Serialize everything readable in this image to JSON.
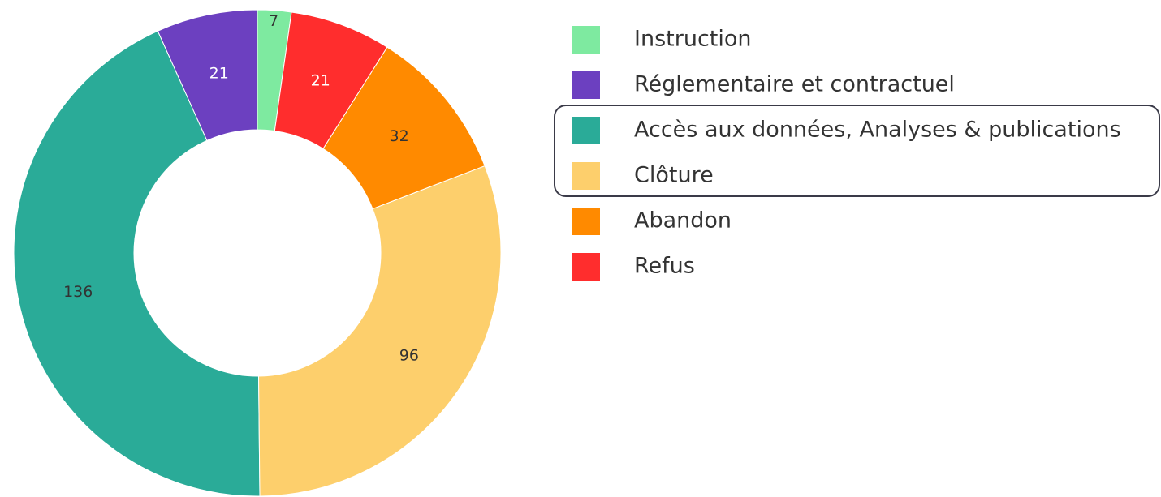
{
  "chart_data": {
    "type": "donut",
    "categories": [
      "Instruction",
      "Réglementaire et contractuel",
      "Accès aux données, Analyses & publications",
      "Clôture",
      "Abandon",
      "Refus"
    ],
    "values": [
      7,
      21,
      136,
      96,
      32,
      21
    ],
    "colors": [
      "#7eeaa0",
      "#6c40c0",
      "#2aab98",
      "#fdcf6c",
      "#ff8a00",
      "#ff2d2d"
    ]
  }
}
